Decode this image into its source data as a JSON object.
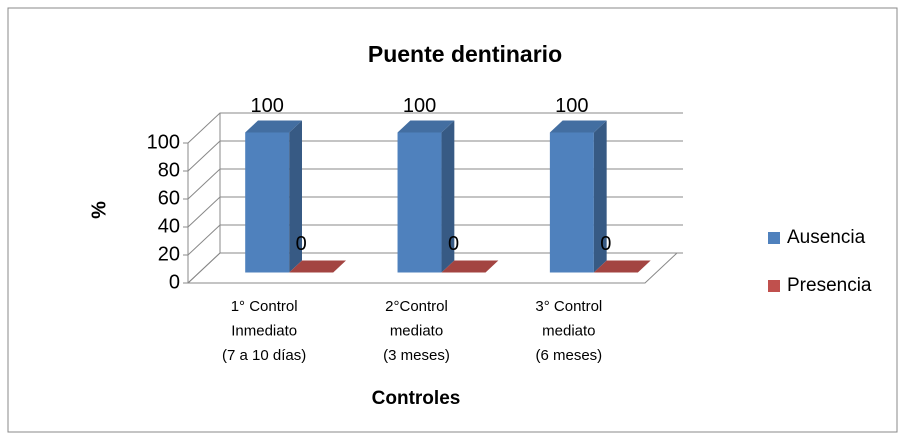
{
  "chart_data": {
    "type": "bar3d",
    "title": "Puente dentinario",
    "categories": [
      [
        "1° Control",
        "Inmediato",
        "(7 a 10 días)"
      ],
      [
        "2°Control",
        "mediato",
        "(3 meses)"
      ],
      [
        "3° Control",
        "mediato",
        "(6 meses)"
      ]
    ],
    "series": [
      {
        "name": "Ausencia",
        "color": "#4f81bd",
        "values": [
          100,
          100,
          100
        ]
      },
      {
        "name": "Presencia",
        "color": "#c0504d",
        "values": [
          0,
          0,
          0
        ]
      }
    ],
    "x_label": "Controles",
    "y_label": "%",
    "ylim": [
      0,
      100
    ],
    "yticks": [
      0,
      20,
      40,
      60,
      80,
      100
    ],
    "grid": true,
    "legend": "right"
  }
}
